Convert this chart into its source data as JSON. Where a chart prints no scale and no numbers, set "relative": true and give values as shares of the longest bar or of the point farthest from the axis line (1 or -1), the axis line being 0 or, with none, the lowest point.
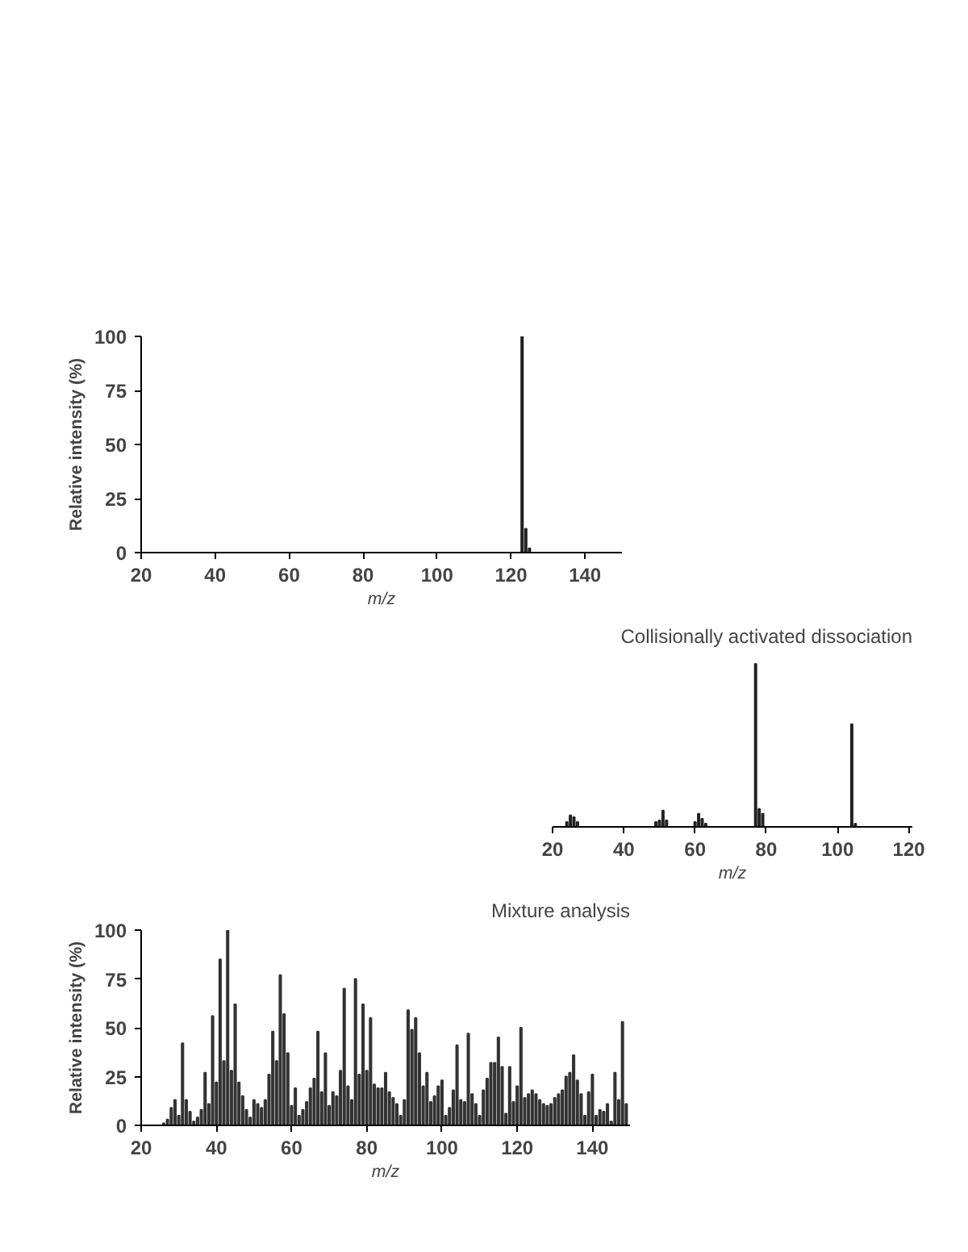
{
  "chart_data": [
    {
      "type": "bar",
      "xlabel": "m/z",
      "ylabel": "Relative intensity (%)",
      "color": "#222222",
      "x": [
        123,
        124,
        125
      ],
      "values": [
        100,
        11,
        2
      ],
      "xlim": [
        20,
        150
      ],
      "xticks": [
        20,
        40,
        60,
        80,
        100,
        120,
        140
      ],
      "ylim": [
        0,
        100
      ],
      "yticks": [
        0,
        25,
        50,
        75,
        100
      ]
    },
    {
      "type": "bar",
      "title": "Collisionally activated dissociation",
      "xlabel": "m/z",
      "color": "#222222",
      "relative": true,
      "x": [
        24,
        25,
        26,
        27,
        49,
        50,
        51,
        52,
        60,
        61,
        62,
        63,
        77,
        78,
        79,
        104,
        105
      ],
      "values": [
        0.03,
        0.07,
        0.06,
        0.03,
        0.03,
        0.04,
        0.1,
        0.04,
        0.03,
        0.08,
        0.05,
        0.02,
        1,
        0.11,
        0.08,
        0.63,
        0.02
      ],
      "xlim": [
        20,
        121
      ],
      "xticks": [
        20,
        40,
        60,
        80,
        100,
        120
      ]
    },
    {
      "type": "bar",
      "title": "Mixture analysis",
      "xlabel": "m/z",
      "ylabel": "Relative intensity (%)",
      "color": "#333333",
      "x": [
        26,
        27,
        28,
        29,
        30,
        31,
        32,
        33,
        34,
        35,
        36,
        37,
        38,
        39,
        40,
        41,
        42,
        43,
        44,
        45,
        46,
        47,
        48,
        49,
        50,
        51,
        52,
        53,
        54,
        55,
        56,
        57,
        58,
        59,
        60,
        61,
        62,
        63,
        64,
        65,
        66,
        67,
        68,
        69,
        70,
        71,
        72,
        73,
        74,
        75,
        76,
        77,
        78,
        79,
        80,
        81,
        82,
        83,
        84,
        85,
        86,
        87,
        88,
        89,
        90,
        91,
        92,
        93,
        94,
        95,
        96,
        97,
        98,
        99,
        100,
        101,
        102,
        103,
        104,
        105,
        106,
        107,
        108,
        109,
        110,
        111,
        112,
        113,
        114,
        115,
        116,
        117,
        118,
        119,
        120,
        121,
        122,
        123,
        124,
        125,
        126,
        127,
        128,
        129,
        130,
        131,
        132,
        133,
        134,
        135,
        136,
        137,
        138,
        139,
        140,
        141,
        142,
        143,
        144,
        145,
        146,
        147,
        148,
        149
      ],
      "values": [
        1,
        3,
        9,
        13,
        5,
        42,
        13,
        7,
        2,
        4,
        8,
        27,
        11,
        56,
        22,
        85,
        33,
        100,
        28,
        62,
        22,
        15,
        8,
        4,
        13,
        11,
        9,
        13,
        26,
        48,
        33,
        77,
        57,
        37,
        10,
        19,
        5,
        8,
        12,
        19,
        24,
        48,
        17,
        37,
        10,
        17,
        15,
        28,
        70,
        20,
        13,
        75,
        26,
        62,
        28,
        55,
        21,
        19,
        19,
        27,
        17,
        14,
        11,
        5,
        13,
        59,
        49,
        55,
        37,
        20,
        27,
        12,
        15,
        20,
        23,
        5,
        9,
        18,
        41,
        13,
        12,
        47,
        16,
        11,
        5,
        18,
        24,
        32,
        32,
        45,
        30,
        6,
        30,
        12,
        20,
        50,
        14,
        16,
        18,
        16,
        13,
        11,
        10,
        11,
        14,
        16,
        18,
        25,
        27,
        36,
        23,
        16,
        5,
        17,
        26,
        5,
        8,
        7,
        11,
        2,
        27,
        13,
        53,
        11
      ],
      "xlim": [
        20,
        150
      ],
      "xticks": [
        20,
        40,
        60,
        80,
        100,
        120,
        140
      ],
      "ylim": [
        0,
        100
      ],
      "yticks": [
        0,
        25,
        50,
        75,
        100
      ]
    }
  ]
}
